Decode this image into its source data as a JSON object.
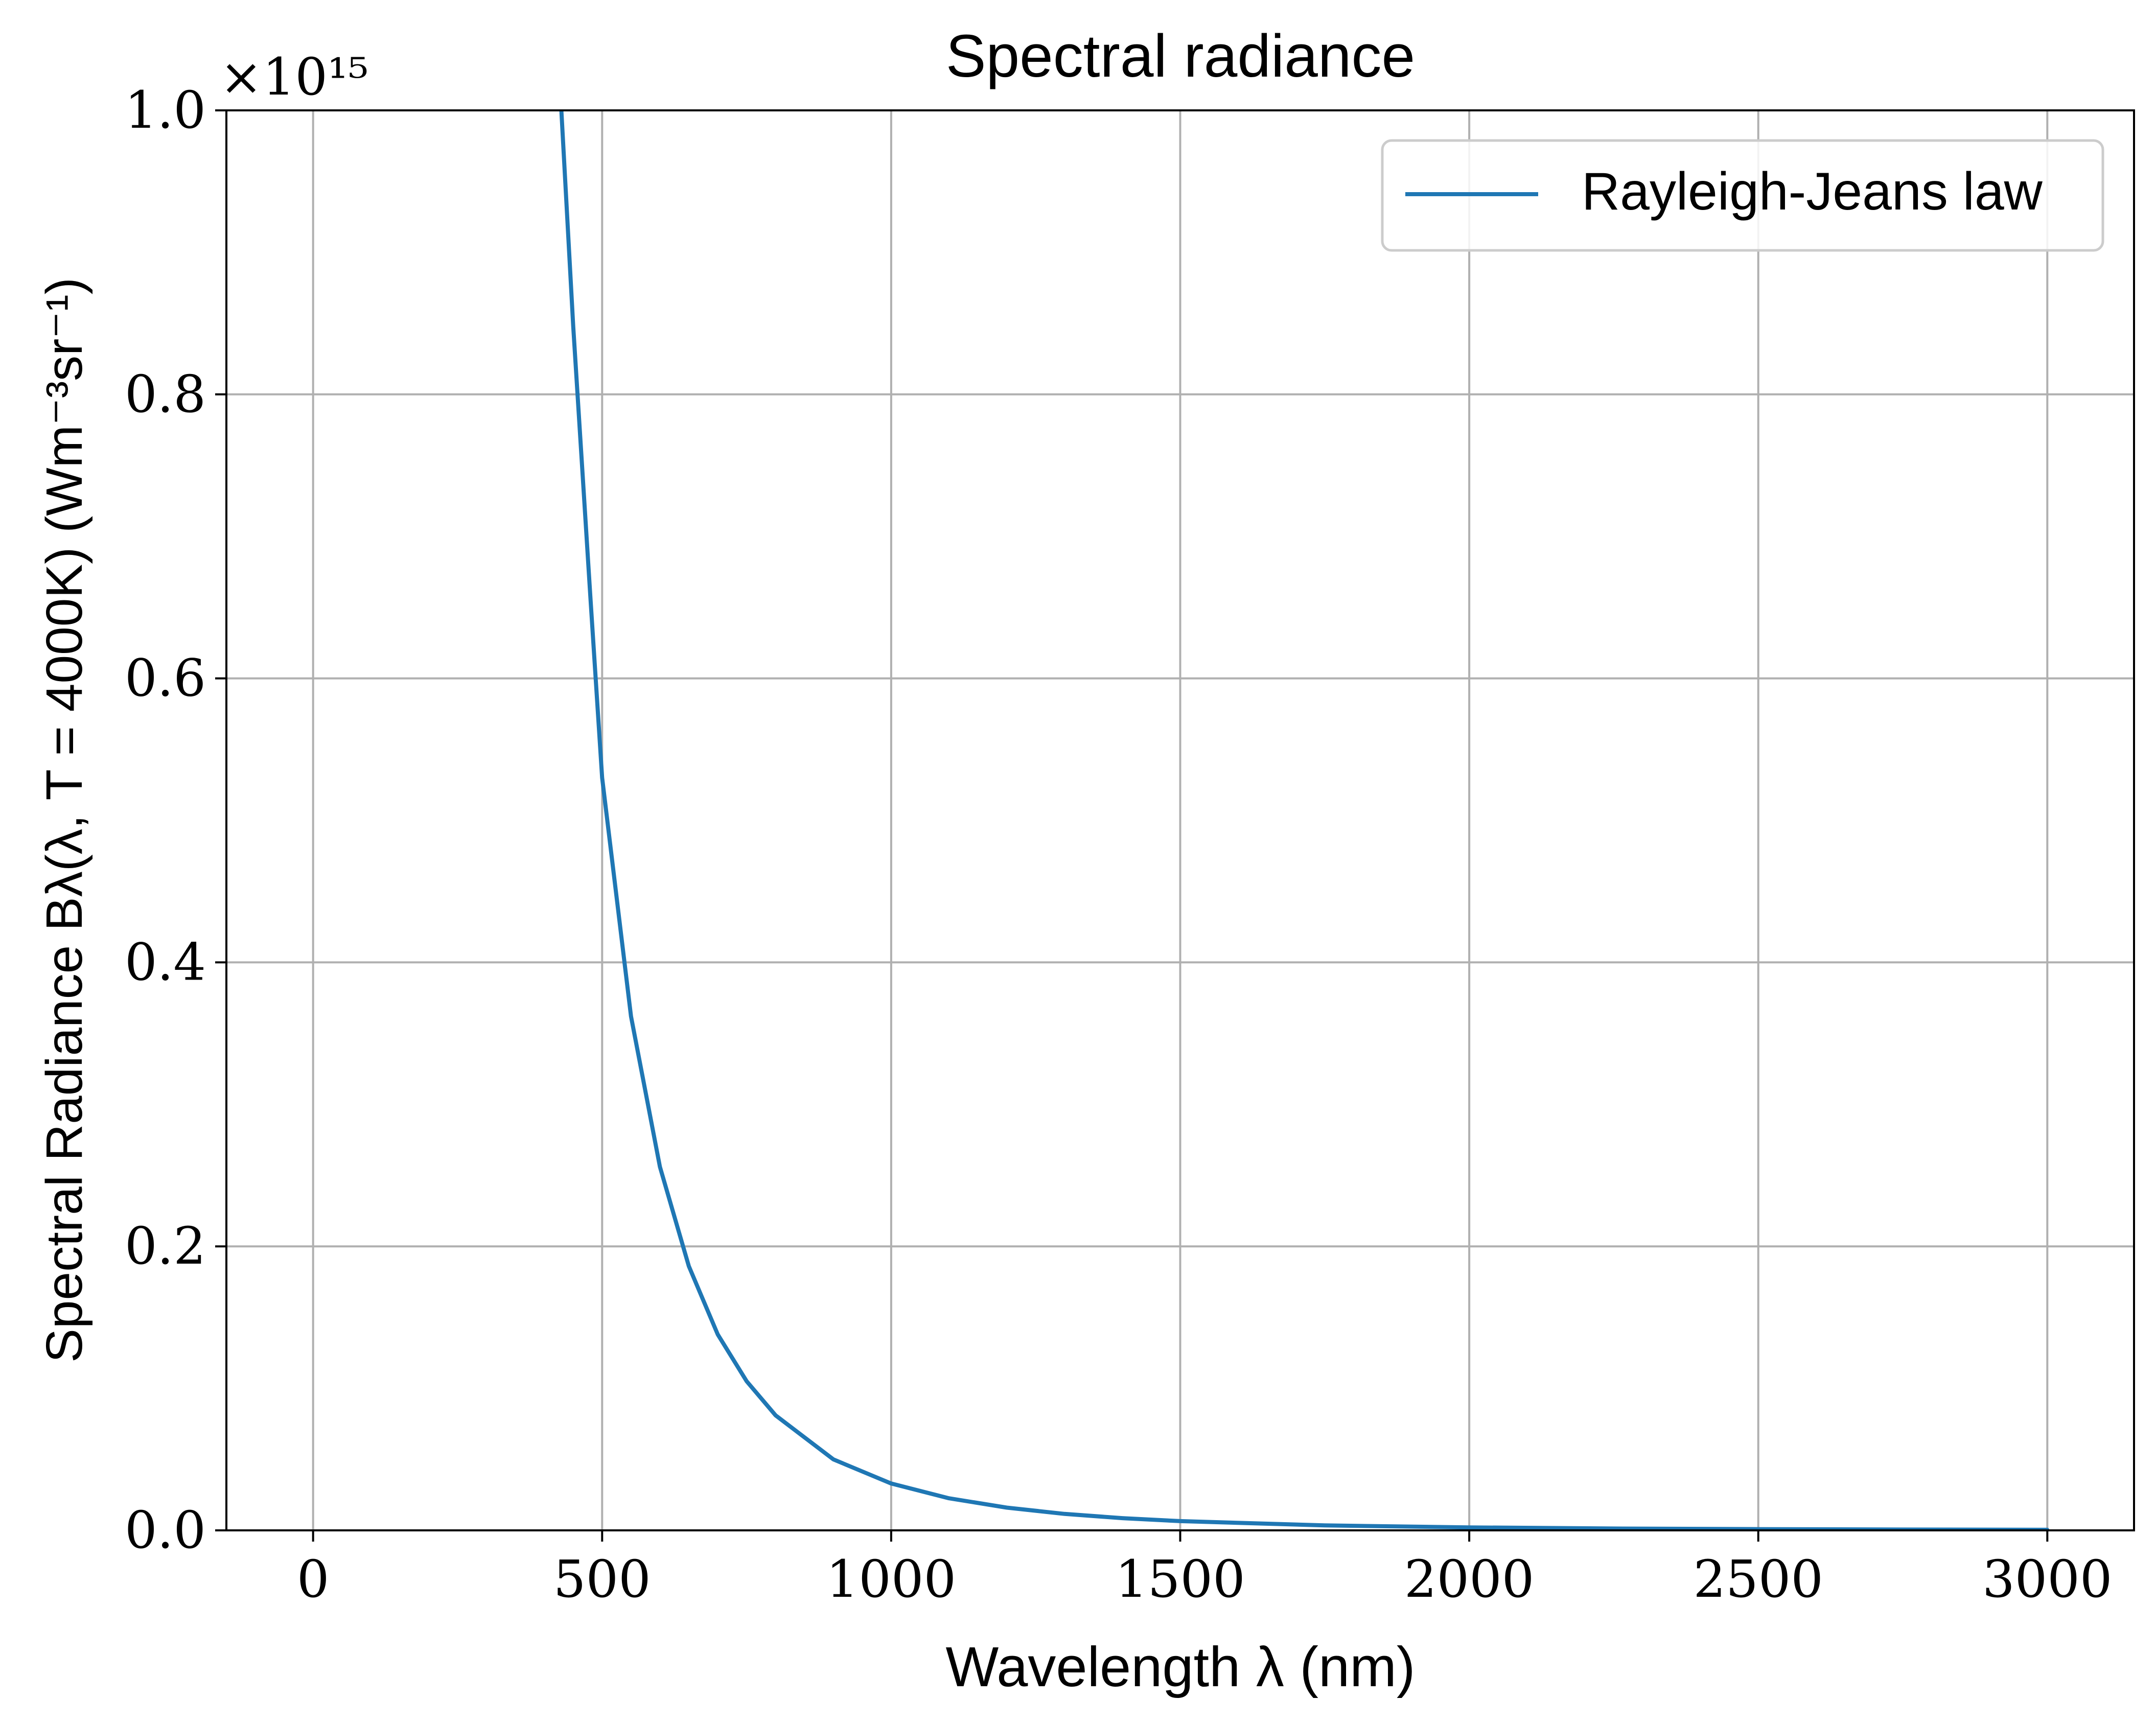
{
  "chart_data": {
    "type": "line",
    "title": "Spectral radiance",
    "xlabel": "Wavelength λ (nm)",
    "ylabel": "Spectral Radiance Bλ(λ, T = 4000K) (Wm⁻³sr⁻¹)",
    "y_offset_label": "×10¹⁵",
    "xlim": [
      -150,
      3150
    ],
    "ylim": [
      0.0,
      1.0
    ],
    "xticks": [
      0,
      500,
      1000,
      1500,
      2000,
      2500,
      3000
    ],
    "xtick_labels": [
      "0",
      "500",
      "1000",
      "1500",
      "2000",
      "2500",
      "3000"
    ],
    "yticks": [
      0.0,
      0.2,
      0.4,
      0.6,
      0.8,
      1.0
    ],
    "ytick_labels": [
      "0.0",
      "0.2",
      "0.4",
      "0.6",
      "0.8",
      "1.0"
    ],
    "grid": true,
    "legend_position": "top-right",
    "series": [
      {
        "name": "Rayleigh-Jeans law",
        "color": "#1f77b4",
        "x": [
          420,
          450,
          480,
          500,
          550,
          600,
          650,
          700,
          750,
          800,
          900,
          1000,
          1100,
          1200,
          1300,
          1400,
          1500,
          1750,
          2000,
          2250,
          2500,
          2750,
          3000
        ],
        "y": [
          1.07,
          0.848,
          0.655,
          0.53,
          0.362,
          0.256,
          0.186,
          0.138,
          0.105,
          0.081,
          0.05,
          0.033,
          0.0226,
          0.016,
          0.0116,
          0.0086,
          0.0065,
          0.0035,
          0.0021,
          0.0013,
          0.00085,
          0.00058,
          0.00041
        ]
      }
    ]
  }
}
